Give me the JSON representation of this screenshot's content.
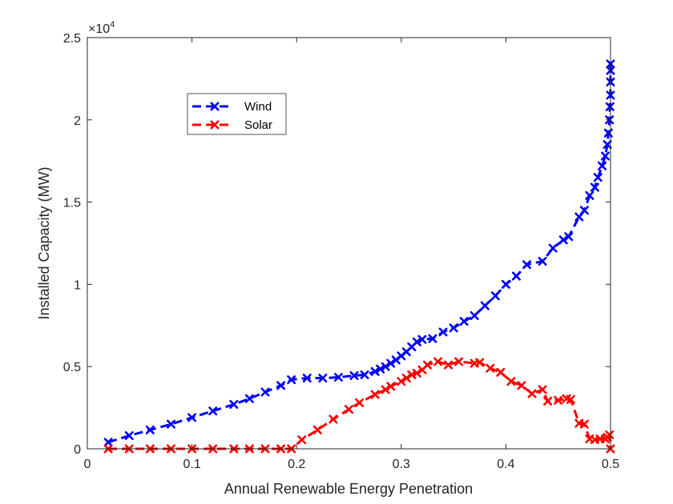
{
  "chart_data": {
    "type": "line",
    "title": "",
    "xlabel": "Annual Renewable Energy Penetration",
    "ylabel": "Installed Capacity (MW)",
    "xlim": [
      0,
      0.5
    ],
    "ylim": [
      0,
      25000
    ],
    "xticks": [
      0,
      0.1,
      0.2,
      0.3,
      0.4,
      0.5
    ],
    "xtick_labels": [
      "0",
      "0.1",
      "0.2",
      "0.3",
      "0.4",
      "0.5"
    ],
    "yticks": [
      0,
      5000,
      10000,
      15000,
      20000,
      25000
    ],
    "ytick_labels": [
      "0",
      "0.5",
      "1",
      "1.5",
      "2",
      "2.5"
    ],
    "y_exponent_base": "×10",
    "y_exponent_power": "4",
    "grid": false,
    "legend_position": "upper-left-inside",
    "series": [
      {
        "name": "Wind",
        "color": "#0000ff",
        "line_style": "dashed",
        "marker": "x",
        "points": [
          [
            0.02,
            400
          ],
          [
            0.04,
            800
          ],
          [
            0.06,
            1150
          ],
          [
            0.08,
            1500
          ],
          [
            0.1,
            1900
          ],
          [
            0.12,
            2300
          ],
          [
            0.14,
            2700
          ],
          [
            0.155,
            3050
          ],
          [
            0.17,
            3450
          ],
          [
            0.185,
            3850
          ],
          [
            0.195,
            4200
          ],
          [
            0.21,
            4300
          ],
          [
            0.225,
            4300
          ],
          [
            0.24,
            4350
          ],
          [
            0.255,
            4450
          ],
          [
            0.265,
            4500
          ],
          [
            0.275,
            4700
          ],
          [
            0.28,
            4850
          ],
          [
            0.285,
            5000
          ],
          [
            0.29,
            5200
          ],
          [
            0.295,
            5400
          ],
          [
            0.3,
            5650
          ],
          [
            0.305,
            5900
          ],
          [
            0.31,
            6200
          ],
          [
            0.315,
            6500
          ],
          [
            0.32,
            6650
          ],
          [
            0.33,
            6700
          ],
          [
            0.34,
            7100
          ],
          [
            0.35,
            7350
          ],
          [
            0.36,
            7750
          ],
          [
            0.37,
            8100
          ],
          [
            0.38,
            8700
          ],
          [
            0.39,
            9300
          ],
          [
            0.4,
            10000
          ],
          [
            0.41,
            10500
          ],
          [
            0.42,
            11200
          ],
          [
            0.435,
            11400
          ],
          [
            0.445,
            12200
          ],
          [
            0.455,
            12700
          ],
          [
            0.46,
            12900
          ],
          [
            0.47,
            14100
          ],
          [
            0.475,
            14500
          ],
          [
            0.48,
            15400
          ],
          [
            0.485,
            15900
          ],
          [
            0.488,
            16500
          ],
          [
            0.492,
            17200
          ],
          [
            0.495,
            17800
          ],
          [
            0.497,
            18500
          ],
          [
            0.498,
            19200
          ],
          [
            0.499,
            20000
          ],
          [
            0.4995,
            20800
          ],
          [
            0.5,
            21500
          ],
          [
            0.5,
            22300
          ],
          [
            0.5,
            23000
          ],
          [
            0.5,
            23400
          ]
        ]
      },
      {
        "name": "Solar",
        "color": "#ff0000",
        "line_style": "dashed",
        "marker": "x",
        "points": [
          [
            0.02,
            0
          ],
          [
            0.04,
            0
          ],
          [
            0.06,
            0
          ],
          [
            0.08,
            0
          ],
          [
            0.1,
            0
          ],
          [
            0.12,
            0
          ],
          [
            0.14,
            0
          ],
          [
            0.155,
            0
          ],
          [
            0.17,
            0
          ],
          [
            0.185,
            0
          ],
          [
            0.195,
            0
          ],
          [
            0.205,
            550
          ],
          [
            0.22,
            1150
          ],
          [
            0.235,
            1800
          ],
          [
            0.25,
            2400
          ],
          [
            0.26,
            2800
          ],
          [
            0.275,
            3300
          ],
          [
            0.285,
            3600
          ],
          [
            0.29,
            3800
          ],
          [
            0.3,
            4100
          ],
          [
            0.305,
            4300
          ],
          [
            0.31,
            4500
          ],
          [
            0.315,
            4600
          ],
          [
            0.32,
            4800
          ],
          [
            0.325,
            5100
          ],
          [
            0.335,
            5300
          ],
          [
            0.345,
            5100
          ],
          [
            0.355,
            5300
          ],
          [
            0.37,
            5200
          ],
          [
            0.375,
            5250
          ],
          [
            0.385,
            4900
          ],
          [
            0.395,
            4650
          ],
          [
            0.405,
            4100
          ],
          [
            0.415,
            3850
          ],
          [
            0.425,
            3350
          ],
          [
            0.435,
            3600
          ],
          [
            0.44,
            2900
          ],
          [
            0.45,
            2950
          ],
          [
            0.458,
            3050
          ],
          [
            0.462,
            3000
          ],
          [
            0.47,
            1550
          ],
          [
            0.475,
            1500
          ],
          [
            0.48,
            600
          ],
          [
            0.485,
            550
          ],
          [
            0.49,
            600
          ],
          [
            0.495,
            600
          ],
          [
            0.497,
            700
          ],
          [
            0.499,
            850
          ],
          [
            0.5,
            0
          ]
        ]
      }
    ]
  }
}
